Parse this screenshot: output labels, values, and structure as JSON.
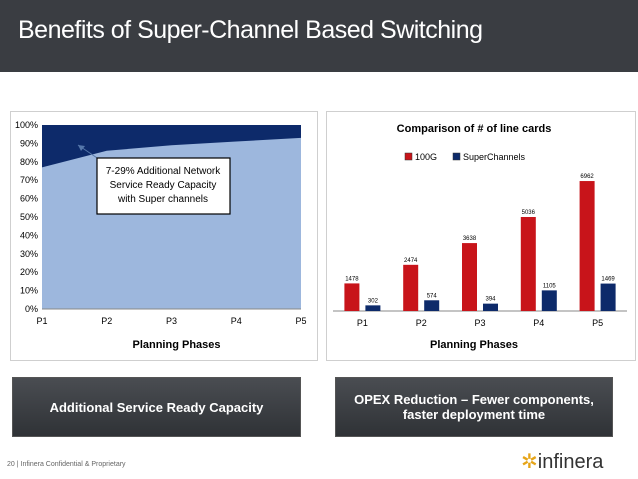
{
  "slide": {
    "title": "Benefits of Super-Channel Based Switching",
    "footer": "20 | Infinera Confidential & Proprietary",
    "logo_mark": "✲",
    "logo_text": "infinera"
  },
  "captions": {
    "left": "Additional Service Ready Capacity",
    "right": "OPEX Reduction – Fewer components, faster deployment time"
  },
  "colors": {
    "header": "#3a3d42",
    "area_dark": "#0d2a6a",
    "area_light": "#9db7dd",
    "bar_100g": "#c8141a",
    "bar_superchannels": "#0d2a6a",
    "logo_accent": "#e6a417"
  },
  "chart_data": [
    {
      "type": "area",
      "title": "",
      "xlabel": "Planning Phases",
      "ylabel": "",
      "categories": [
        "P1",
        "P2",
        "P3",
        "P4",
        "P5"
      ],
      "ylim": [
        0,
        100
      ],
      "yticks": [
        "0%",
        "10%",
        "20%",
        "30%",
        "40%",
        "50%",
        "60%",
        "70%",
        "80%",
        "90%",
        "100%"
      ],
      "series": [
        {
          "values": [
            77,
            86,
            89,
            91,
            93
          ]
        },
        {
          "values": [
            100,
            100,
            100,
            100,
            100
          ]
        }
      ],
      "annotation": "7-29% Additional Network Service Ready Capacity with Super channels",
      "grid": false
    },
    {
      "type": "bar",
      "title": "Comparison of # of line cards",
      "xlabel": "Planning Phases",
      "ylabel": "",
      "categories": [
        "P1",
        "P2",
        "P3",
        "P4",
        "P5"
      ],
      "legend": "top-center",
      "series": [
        {
          "name": "100G",
          "values": [
            1478,
            2474,
            3638,
            5036,
            6962
          ]
        },
        {
          "name": "SuperChannels",
          "values": [
            302,
            574,
            394,
            1105,
            1469
          ]
        }
      ],
      "data_labels": [
        [
          "1478",
          "2474",
          "3638",
          "5036",
          "6962"
        ],
        [
          "302",
          "574",
          "394",
          "1105",
          "1469"
        ]
      ],
      "ylim": [
        0,
        7500
      ]
    }
  ]
}
